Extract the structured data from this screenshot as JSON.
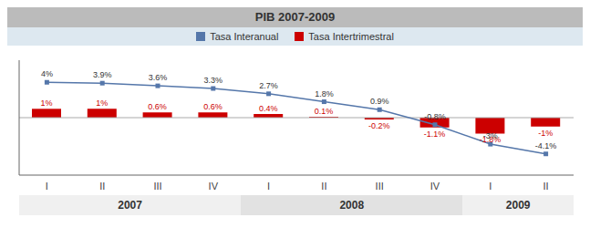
{
  "chart_data": {
    "type": "bar",
    "title": "PIB 2007-2009",
    "categories": [
      "I",
      "II",
      "III",
      "IV",
      "I",
      "II",
      "III",
      "IV",
      "I",
      "II"
    ],
    "series": [
      {
        "name": "Tasa Interanual",
        "type": "line",
        "color": "#5577aa",
        "marker": "square",
        "values": [
          4.0,
          3.9,
          3.6,
          3.3,
          2.7,
          1.8,
          0.9,
          -0.8,
          -3.0,
          -4.1
        ],
        "value_labels": [
          "4%",
          "3.9%",
          "3.6%",
          "3.3%",
          "2.7%",
          "1.8%",
          "0.9%",
          "-0.8%",
          "-3%",
          "-4.1%"
        ]
      },
      {
        "name": "Tasa Intertrimestral",
        "type": "bar",
        "color": "#cc0000",
        "values": [
          1.0,
          1.0,
          0.6,
          0.6,
          0.4,
          0.1,
          -0.2,
          -1.1,
          -1.8,
          -1.0
        ],
        "value_labels": [
          "1%",
          "1%",
          "0.6%",
          "0.6%",
          "0.4%",
          "0.1%",
          "-0.2%",
          "-1.1%",
          "-1.8%",
          "-1%"
        ]
      }
    ],
    "ylim": [
      -6.5,
      6.5
    ],
    "yticks": [
      0
    ],
    "tick_labels": "x",
    "data_labels": true,
    "grid": false,
    "legend": "top",
    "annotations": [
      {
        "text": "2007",
        "start": 0,
        "end": 3
      },
      {
        "text": "2008",
        "start": 4,
        "end": 7
      },
      {
        "text": "2009",
        "start": 8,
        "end": 9
      }
    ]
  }
}
